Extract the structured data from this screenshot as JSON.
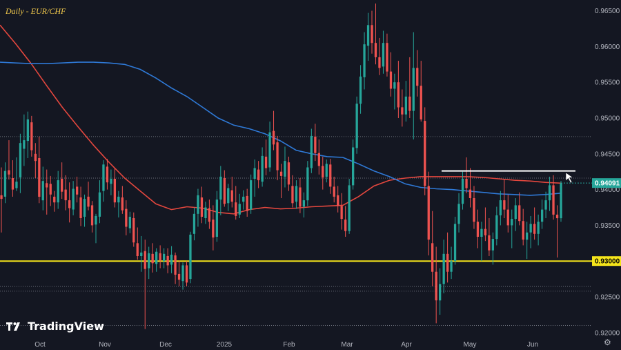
{
  "title": "Daily - EUR/CHF",
  "brand": {
    "name": "TradingView",
    "logo_icon": "tradingview-logo-icon"
  },
  "colors": {
    "background": "#141722",
    "bull": "#26a69a",
    "bear": "#ef5350",
    "ma_red": "#e4473e",
    "ma_blue": "#2f7ad8",
    "support_line": "#f5e51b",
    "resistance_line": "#ffffff",
    "axis_text": "#b2b5be"
  },
  "chart_data": {
    "type": "candlestick",
    "instrument": "EUR/CHF",
    "timeframe": "Daily",
    "ylim": [
      0.9195,
      0.9665
    ],
    "y_ticks": [
      "0.96500",
      "0.96000",
      "0.95500",
      "0.95000",
      "0.94500",
      "0.94000",
      "0.93500",
      "0.93000",
      "0.92500",
      "0.92000"
    ],
    "x_labels": [
      "Oct",
      "Nov",
      "Dec",
      "2025",
      "Feb",
      "Mar",
      "Apr",
      "May",
      "Jun"
    ],
    "current_price": "0.94091",
    "horizontal_levels": [
      {
        "value": "0.93000",
        "kind": "support",
        "color": "#f5e51b"
      },
      {
        "value": 0.9426,
        "kind": "resistance",
        "color": "#ffffff"
      }
    ],
    "dotted_levels": [
      0.9474,
      0.9416,
      0.9265,
      0.9258,
      0.921
    ],
    "moving_averages": [
      {
        "color": "#e4473e",
        "values": [
          0.963,
          0.9604,
          0.9576,
          0.9545,
          0.9515,
          0.9488,
          0.9462,
          0.9438,
          0.9416,
          0.9398,
          0.938,
          0.9372,
          0.9376,
          0.9374,
          0.9368,
          0.9366,
          0.9372,
          0.9375,
          0.9373,
          0.9374,
          0.9376,
          0.9377,
          0.9378,
          0.939,
          0.9405,
          0.9413,
          0.9416,
          0.9418,
          0.9418,
          0.9418,
          0.9418,
          0.9417,
          0.9415,
          0.9413,
          0.9412,
          0.941,
          0.9409
        ]
      },
      {
        "color": "#2f7ad8",
        "values": [
          0.9578,
          0.9577,
          0.9576,
          0.9576,
          0.9577,
          0.9578,
          0.9578,
          0.9577,
          0.9575,
          0.9568,
          0.9556,
          0.9542,
          0.953,
          0.9515,
          0.95,
          0.949,
          0.9485,
          0.9478,
          0.9468,
          0.9455,
          0.945,
          0.9446,
          0.9445,
          0.9436,
          0.9426,
          0.9418,
          0.9408,
          0.9403,
          0.9401,
          0.94,
          0.9398,
          0.9396,
          0.9394,
          0.9393,
          0.9392,
          0.9393,
          0.9395
        ]
      }
    ],
    "candles": [
      [
        0.9392,
        0.9431,
        0.934,
        0.9387
      ],
      [
        0.939,
        0.9438,
        0.9381,
        0.9426
      ],
      [
        0.9427,
        0.9469,
        0.9414,
        0.9421
      ],
      [
        0.9416,
        0.9441,
        0.939,
        0.94
      ],
      [
        0.9402,
        0.9445,
        0.9398,
        0.9411
      ],
      [
        0.9417,
        0.9478,
        0.9395,
        0.9465
      ],
      [
        0.9457,
        0.9505,
        0.9433,
        0.9469
      ],
      [
        0.9468,
        0.9509,
        0.9444,
        0.9498
      ],
      [
        0.9494,
        0.9503,
        0.9446,
        0.9455
      ],
      [
        0.945,
        0.9465,
        0.9416,
        0.944
      ],
      [
        0.9444,
        0.9474,
        0.9381,
        0.939
      ],
      [
        0.9385,
        0.9432,
        0.9371,
        0.9412
      ],
      [
        0.9409,
        0.9428,
        0.9365,
        0.9403
      ],
      [
        0.9408,
        0.9419,
        0.9377,
        0.9393
      ],
      [
        0.939,
        0.9398,
        0.9369,
        0.9382
      ],
      [
        0.9382,
        0.9426,
        0.9373,
        0.9413
      ],
      [
        0.9415,
        0.9438,
        0.9387,
        0.9397
      ],
      [
        0.94,
        0.942,
        0.9371,
        0.9385
      ],
      [
        0.9385,
        0.941,
        0.9354,
        0.9374
      ],
      [
        0.9372,
        0.9412,
        0.9364,
        0.9401
      ],
      [
        0.9404,
        0.9418,
        0.9382,
        0.9393
      ],
      [
        0.9389,
        0.9404,
        0.9349,
        0.936
      ],
      [
        0.9362,
        0.9393,
        0.9348,
        0.9387
      ],
      [
        0.939,
        0.9411,
        0.9371,
        0.9376
      ],
      [
        0.9378,
        0.9384,
        0.934,
        0.935
      ],
      [
        0.9351,
        0.9366,
        0.9325,
        0.9363
      ],
      [
        0.9362,
        0.9413,
        0.9353,
        0.9396
      ],
      [
        0.9398,
        0.9441,
        0.9383,
        0.9435
      ],
      [
        0.9432,
        0.9443,
        0.94,
        0.941
      ],
      [
        0.9408,
        0.9428,
        0.9392,
        0.9415
      ],
      [
        0.9415,
        0.943,
        0.9375,
        0.9382
      ],
      [
        0.9382,
        0.9398,
        0.9361,
        0.939
      ],
      [
        0.9389,
        0.9405,
        0.9366,
        0.9371
      ],
      [
        0.9373,
        0.9385,
        0.9336,
        0.9348
      ],
      [
        0.9346,
        0.9369,
        0.9339,
        0.9362
      ],
      [
        0.936,
        0.9368,
        0.932,
        0.9326
      ],
      [
        0.9325,
        0.9347,
        0.9302,
        0.9307
      ],
      [
        0.9307,
        0.9335,
        0.9285,
        0.9312
      ],
      [
        0.9314,
        0.933,
        0.9205,
        0.9289
      ],
      [
        0.929,
        0.932,
        0.9275,
        0.9311
      ],
      [
        0.931,
        0.9325,
        0.9284,
        0.9297
      ],
      [
        0.9296,
        0.9318,
        0.9285,
        0.9313
      ],
      [
        0.9311,
        0.9322,
        0.929,
        0.9301
      ],
      [
        0.93,
        0.9318,
        0.929,
        0.931
      ],
      [
        0.9307,
        0.9318,
        0.9283,
        0.9294
      ],
      [
        0.9295,
        0.9321,
        0.9283,
        0.9309
      ],
      [
        0.9308,
        0.9312,
        0.9268,
        0.9281
      ],
      [
        0.9282,
        0.9301,
        0.9265,
        0.9274
      ],
      [
        0.9272,
        0.9298,
        0.926,
        0.9294
      ],
      [
        0.9294,
        0.93,
        0.9265,
        0.927
      ],
      [
        0.9275,
        0.9341,
        0.9269,
        0.9337
      ],
      [
        0.9338,
        0.9375,
        0.9329,
        0.9366
      ],
      [
        0.9366,
        0.9401,
        0.9348,
        0.9392
      ],
      [
        0.9389,
        0.9404,
        0.9353,
        0.9362
      ],
      [
        0.936,
        0.9383,
        0.9352,
        0.9375
      ],
      [
        0.9374,
        0.9386,
        0.9345,
        0.9355
      ],
      [
        0.9358,
        0.9378,
        0.9315,
        0.9333
      ],
      [
        0.9334,
        0.9398,
        0.9327,
        0.9386
      ],
      [
        0.9386,
        0.9433,
        0.9364,
        0.9418
      ],
      [
        0.9416,
        0.9427,
        0.9376,
        0.938
      ],
      [
        0.9381,
        0.9408,
        0.937,
        0.9402
      ],
      [
        0.9399,
        0.9418,
        0.9375,
        0.9383
      ],
      [
        0.9382,
        0.9405,
        0.9358,
        0.9363
      ],
      [
        0.9365,
        0.9394,
        0.936,
        0.938
      ],
      [
        0.9383,
        0.9399,
        0.9372,
        0.939
      ],
      [
        0.9391,
        0.9401,
        0.9362,
        0.937
      ],
      [
        0.9372,
        0.9421,
        0.9366,
        0.9413
      ],
      [
        0.9415,
        0.9442,
        0.939,
        0.943
      ],
      [
        0.9428,
        0.944,
        0.9402,
        0.9413
      ],
      [
        0.9411,
        0.9459,
        0.9404,
        0.9447
      ],
      [
        0.9446,
        0.947,
        0.942,
        0.943
      ],
      [
        0.9431,
        0.9495,
        0.9425,
        0.948
      ],
      [
        0.9482,
        0.951,
        0.9455,
        0.9463
      ],
      [
        0.9466,
        0.9475,
        0.9413,
        0.9427
      ],
      [
        0.9425,
        0.9436,
        0.9388,
        0.9419
      ],
      [
        0.9418,
        0.946,
        0.9403,
        0.944
      ],
      [
        0.9438,
        0.9446,
        0.9398,
        0.9407
      ],
      [
        0.9405,
        0.942,
        0.9375,
        0.9381
      ],
      [
        0.9383,
        0.9413,
        0.9373,
        0.9405
      ],
      [
        0.9403,
        0.9416,
        0.9367,
        0.9376
      ],
      [
        0.9376,
        0.9396,
        0.9361,
        0.9385
      ],
      [
        0.9385,
        0.944,
        0.9377,
        0.9431
      ],
      [
        0.943,
        0.9485,
        0.9423,
        0.9475
      ],
      [
        0.9474,
        0.9492,
        0.944,
        0.9451
      ],
      [
        0.9451,
        0.947,
        0.9421,
        0.9433
      ],
      [
        0.9433,
        0.9446,
        0.94,
        0.9417
      ],
      [
        0.9418,
        0.9442,
        0.941,
        0.9436
      ],
      [
        0.9435,
        0.9443,
        0.9394,
        0.9404
      ],
      [
        0.9404,
        0.9418,
        0.9382,
        0.939
      ],
      [
        0.9392,
        0.9405,
        0.9368,
        0.9377
      ],
      [
        0.9377,
        0.9395,
        0.9344,
        0.9359
      ],
      [
        0.9358,
        0.9377,
        0.9334,
        0.9342
      ],
      [
        0.9342,
        0.9415,
        0.9338,
        0.9406
      ],
      [
        0.9406,
        0.947,
        0.94,
        0.9459
      ],
      [
        0.9458,
        0.953,
        0.945,
        0.952
      ],
      [
        0.952,
        0.9574,
        0.9506,
        0.9558
      ],
      [
        0.9557,
        0.962,
        0.954,
        0.9603
      ],
      [
        0.9601,
        0.9647,
        0.958,
        0.963
      ],
      [
        0.963,
        0.965,
        0.959,
        0.9605
      ],
      [
        0.9605,
        0.966,
        0.9575,
        0.9585
      ],
      [
        0.9585,
        0.9612,
        0.956,
        0.957
      ],
      [
        0.9572,
        0.9622,
        0.9562,
        0.9605
      ],
      [
        0.9605,
        0.9618,
        0.9558,
        0.9565
      ],
      [
        0.9565,
        0.9592,
        0.953,
        0.9541
      ],
      [
        0.9541,
        0.9562,
        0.9512,
        0.955
      ],
      [
        0.955,
        0.958,
        0.95,
        0.9515
      ],
      [
        0.9515,
        0.954,
        0.9488,
        0.9505
      ],
      [
        0.9505,
        0.9552,
        0.9495,
        0.953
      ],
      [
        0.953,
        0.9585,
        0.95,
        0.951
      ],
      [
        0.951,
        0.962,
        0.947,
        0.957
      ],
      [
        0.957,
        0.9595,
        0.953,
        0.9545
      ],
      [
        0.9545,
        0.958,
        0.9495,
        0.9498
      ],
      [
        0.9496,
        0.9515,
        0.9392,
        0.9405
      ],
      [
        0.9405,
        0.9425,
        0.9308,
        0.933
      ],
      [
        0.9325,
        0.937,
        0.9265,
        0.9285
      ],
      [
        0.9285,
        0.932,
        0.9213,
        0.9245
      ],
      [
        0.9245,
        0.929,
        0.9225,
        0.9268
      ],
      [
        0.9268,
        0.933,
        0.9255,
        0.931
      ],
      [
        0.931,
        0.934,
        0.927,
        0.9285
      ],
      [
        0.9285,
        0.932,
        0.9275,
        0.93
      ],
      [
        0.93,
        0.9362,
        0.9295,
        0.9352
      ],
      [
        0.9352,
        0.9395,
        0.934,
        0.938
      ],
      [
        0.938,
        0.9425,
        0.9372,
        0.9415
      ],
      [
        0.9415,
        0.9445,
        0.9395,
        0.9402
      ],
      [
        0.94,
        0.943,
        0.9375,
        0.9388
      ],
      [
        0.9388,
        0.9405,
        0.9345,
        0.9355
      ],
      [
        0.9355,
        0.9372,
        0.9318,
        0.9334
      ],
      [
        0.9334,
        0.9355,
        0.93,
        0.9345
      ],
      [
        0.9345,
        0.9375,
        0.9328,
        0.9336
      ],
      [
        0.9336,
        0.936,
        0.9307,
        0.9315
      ],
      [
        0.9315,
        0.934,
        0.9295,
        0.9331
      ],
      [
        0.9331,
        0.9376,
        0.9322,
        0.9364
      ],
      [
        0.9364,
        0.9398,
        0.935,
        0.9385
      ],
      [
        0.9385,
        0.9415,
        0.936,
        0.9372
      ],
      [
        0.9372,
        0.9393,
        0.934,
        0.935
      ],
      [
        0.935,
        0.9372,
        0.9318,
        0.9359
      ],
      [
        0.9359,
        0.9388,
        0.9342,
        0.9378
      ],
      [
        0.9378,
        0.9396,
        0.935,
        0.9356
      ],
      [
        0.9356,
        0.9373,
        0.9322,
        0.933
      ],
      [
        0.933,
        0.9355,
        0.9303,
        0.934
      ],
      [
        0.934,
        0.9363,
        0.9318,
        0.9352
      ],
      [
        0.9352,
        0.9375,
        0.933,
        0.9338
      ],
      [
        0.9338,
        0.9365,
        0.9322,
        0.9355
      ],
      [
        0.9355,
        0.9386,
        0.9345,
        0.9372
      ],
      [
        0.9372,
        0.9397,
        0.936,
        0.9385
      ],
      [
        0.9385,
        0.9418,
        0.937,
        0.9406
      ],
      [
        0.9406,
        0.942,
        0.9358,
        0.9365
      ],
      [
        0.9365,
        0.9378,
        0.9305,
        0.936
      ],
      [
        0.936,
        0.9412,
        0.9355,
        0.9409
      ]
    ]
  }
}
